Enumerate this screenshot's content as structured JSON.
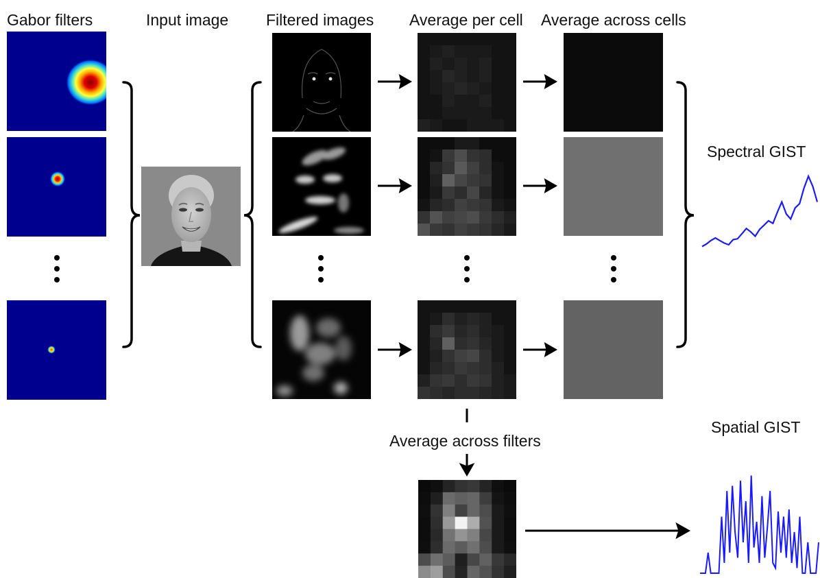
{
  "titles": {
    "gabor_filters": "Gabor filters",
    "input_image": "Input image",
    "filtered_images": "Filtered images",
    "average_per_cell": "Average per cell",
    "average_across_cells": "Average across cells",
    "average_across_filters": "Average across filters",
    "spectral_gist": "Spectral GIST",
    "spatial_gist": "Spatial GIST"
  },
  "colors": {
    "filter_background": "#00008f",
    "gist_line": "#1a1aff",
    "ink": "#000000",
    "input_background": "#8a8a8a"
  },
  "gabor_filters": [
    {
      "name": "filter-1",
      "blob_radius_fraction": 0.24
    },
    {
      "name": "filter-2",
      "blob_radius_fraction": 0.07
    },
    {
      "name": "filter-n",
      "blob_radius_fraction": 0.035
    }
  ],
  "average_across_cells_gray": [
    "#0b0b0b",
    "#707070",
    "#636363"
  ],
  "average_per_cell": [
    [
      [
        3,
        3,
        3,
        3,
        3,
        3,
        3,
        3
      ],
      [
        3,
        4,
        5,
        4,
        4,
        4,
        3,
        3
      ],
      [
        3,
        5,
        4,
        5,
        4,
        5,
        3,
        3
      ],
      [
        3,
        4,
        6,
        5,
        4,
        5,
        3,
        3
      ],
      [
        3,
        4,
        5,
        6,
        5,
        4,
        3,
        3
      ],
      [
        3,
        3,
        5,
        4,
        4,
        5,
        3,
        3
      ],
      [
        3,
        3,
        4,
        4,
        4,
        4,
        3,
        3
      ],
      [
        5,
        4,
        3,
        3,
        4,
        4,
        4,
        3
      ]
    ],
    [
      [
        2,
        2,
        2,
        4,
        4,
        2,
        2,
        2
      ],
      [
        2,
        3,
        9,
        12,
        8,
        7,
        2,
        2
      ],
      [
        2,
        6,
        8,
        14,
        10,
        7,
        3,
        2
      ],
      [
        2,
        5,
        15,
        11,
        9,
        8,
        3,
        2
      ],
      [
        2,
        4,
        9,
        7,
        11,
        6,
        3,
        2
      ],
      [
        3,
        6,
        7,
        10,
        9,
        8,
        4,
        3
      ],
      [
        8,
        13,
        10,
        11,
        12,
        9,
        7,
        5
      ],
      [
        13,
        9,
        8,
        10,
        9,
        8,
        6,
        4
      ]
    ],
    [
      [
        3,
        3,
        3,
        3,
        3,
        3,
        3,
        3
      ],
      [
        3,
        4,
        7,
        5,
        6,
        5,
        3,
        3
      ],
      [
        3,
        7,
        9,
        6,
        7,
        5,
        4,
        3
      ],
      [
        3,
        6,
        15,
        7,
        8,
        6,
        4,
        3
      ],
      [
        3,
        5,
        8,
        10,
        11,
        7,
        4,
        3
      ],
      [
        3,
        6,
        7,
        9,
        8,
        7,
        5,
        3
      ],
      [
        5,
        8,
        9,
        7,
        9,
        8,
        5,
        4
      ],
      [
        8,
        7,
        6,
        7,
        7,
        6,
        5,
        4
      ]
    ]
  ],
  "spatial_average": [
    [
      4,
      6,
      14,
      20,
      22,
      14,
      6,
      4
    ],
    [
      5,
      12,
      42,
      38,
      40,
      24,
      8,
      5
    ],
    [
      6,
      20,
      50,
      26,
      40,
      30,
      10,
      6
    ],
    [
      5,
      18,
      60,
      95,
      68,
      32,
      10,
      5
    ],
    [
      5,
      16,
      45,
      58,
      50,
      28,
      10,
      5
    ],
    [
      6,
      18,
      42,
      36,
      44,
      30,
      10,
      6
    ],
    [
      30,
      44,
      36,
      12,
      28,
      38,
      22,
      16
    ],
    [
      55,
      62,
      30,
      14,
      40,
      32,
      20,
      12
    ]
  ],
  "spectral_gist": [
    0.1,
    0.13,
    0.17,
    0.2,
    0.17,
    0.14,
    0.12,
    0.18,
    0.19,
    0.25,
    0.31,
    0.27,
    0.22,
    0.3,
    0.35,
    0.4,
    0.37,
    0.5,
    0.62,
    0.48,
    0.42,
    0.55,
    0.6,
    0.78,
    0.92,
    0.8,
    0.62
  ],
  "spatial_gist": [
    0.0,
    0.0,
    0.0,
    0.2,
    0.0,
    0.0,
    0.0,
    0.0,
    0.55,
    0.1,
    0.8,
    0.2,
    0.85,
    0.4,
    0.15,
    0.9,
    0.3,
    0.7,
    0.1,
    0.95,
    0.25,
    0.5,
    0.1,
    0.75,
    0.15,
    0.45,
    0.8,
    0.1,
    0.05,
    0.6,
    0.2,
    0.55,
    0.15,
    0.62,
    0.1,
    0.4,
    0.05,
    0.55,
    0.0,
    0.0,
    0.3,
    0.0,
    0.0,
    0.0,
    0.3
  ]
}
